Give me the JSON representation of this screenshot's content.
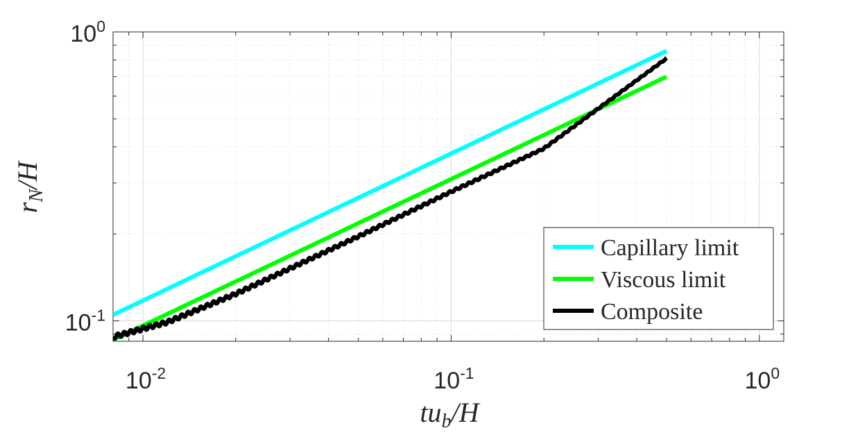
{
  "chart_data": {
    "type": "line",
    "scale": {
      "x": "log",
      "y": "log"
    },
    "xlim": [
      0.008,
      1.2
    ],
    "ylim": [
      0.085,
      1.0
    ],
    "xlabel": {
      "base": "tu",
      "sub": "b",
      "tail": "/H"
    },
    "ylabel": {
      "base": "r",
      "sub": "N",
      "tail": "/H"
    },
    "grid": true,
    "legend_position": "bottom-right",
    "x_ticks": [
      {
        "value": 0.01,
        "base": "10",
        "exp": "-2"
      },
      {
        "value": 0.1,
        "base": "10",
        "exp": "-1"
      },
      {
        "value": 1,
        "base": "10",
        "exp": "0"
      }
    ],
    "y_ticks": [
      {
        "value": 0.1,
        "base": "10",
        "exp": "-1"
      },
      {
        "value": 1,
        "base": "10",
        "exp": "0"
      }
    ],
    "series": [
      {
        "name": "Capillary limit",
        "color": "#00ffff",
        "style": "solid",
        "x": [
          0.008,
          0.5
        ],
        "y": [
          0.105,
          0.86
        ]
      },
      {
        "name": "Viscous limit",
        "color": "#00ff00",
        "style": "solid",
        "x": [
          0.008,
          0.5
        ],
        "y": [
          0.086,
          0.7
        ]
      },
      {
        "name": "Composite",
        "color": "#000000",
        "style": "oscillating",
        "x": [
          0.008,
          0.012,
          0.02,
          0.05,
          0.1,
          0.2,
          0.5
        ],
        "y": [
          0.088,
          0.099,
          0.124,
          0.196,
          0.28,
          0.395,
          0.81
        ]
      }
    ]
  }
}
